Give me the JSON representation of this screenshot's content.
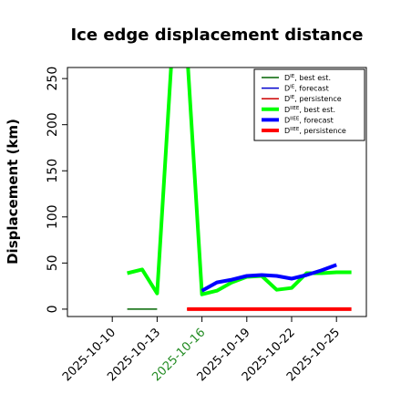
{
  "chart_data": {
    "type": "line",
    "title": "Ice edge displacement distance",
    "ylabel": "Displacement (km)",
    "xlabel": "",
    "x_axis": {
      "type": "date",
      "ticks": [
        "2025-10-10",
        "2025-10-13",
        "2025-10-16",
        "2025-10-19",
        "2025-10-22",
        "2025-10-25"
      ],
      "highlighted_tick": "2025-10-16",
      "highlight_color": "#228B22"
    },
    "xlim": [
      "2025-10-07",
      "2025-10-27"
    ],
    "ylim": [
      -8,
      262
    ],
    "yticks": [
      0,
      50,
      100,
      150,
      200,
      250
    ],
    "grid": false,
    "legend": {
      "position": "top-right",
      "entries": [
        {
          "base": "D",
          "sup": "IE",
          "suffix": ", best est.",
          "color": "#006400",
          "width": 1.5
        },
        {
          "base": "D",
          "sup": "IE",
          "suffix": ", forecast",
          "color": "#0000cd",
          "width": 1.5
        },
        {
          "base": "D",
          "sup": "IE",
          "suffix": ", persistence",
          "color": "#cc0000",
          "width": 1.5
        },
        {
          "base": "D",
          "sup": "IIEE",
          "suffix": ", best est.",
          "color": "#00ff00",
          "width": 4
        },
        {
          "base": "D",
          "sup": "IIEE",
          "suffix": ", forecast",
          "color": "#0000ff",
          "width": 4
        },
        {
          "base": "D",
          "sup": "IIEE",
          "suffix": ", persistence",
          "color": "#ff0000",
          "width": 4
        }
      ]
    },
    "series": [
      {
        "name": "D IE, best est.",
        "color": "#006400",
        "width": 1.5,
        "points": [
          [
            "2025-10-11",
            0
          ],
          [
            "2025-10-12",
            0
          ],
          [
            "2025-10-13",
            0
          ]
        ]
      },
      {
        "name": "D IE, persistence",
        "color": "#cc0000",
        "width": 1.5,
        "points": [
          [
            "2025-10-15",
            0
          ],
          [
            "2025-10-16",
            0
          ],
          [
            "2025-10-17",
            0
          ],
          [
            "2025-10-18",
            0
          ],
          [
            "2025-10-19",
            0
          ],
          [
            "2025-10-20",
            0
          ],
          [
            "2025-10-21",
            0
          ],
          [
            "2025-10-22",
            0
          ],
          [
            "2025-10-23",
            0
          ],
          [
            "2025-10-24",
            0
          ],
          [
            "2025-10-25",
            0
          ]
        ]
      },
      {
        "name": "D IE, forecast",
        "color": "#0000cd",
        "width": 1.5,
        "points": [
          [
            "2025-10-16",
            0
          ],
          [
            "2025-10-17",
            0
          ],
          [
            "2025-10-18",
            0
          ],
          [
            "2025-10-19",
            0
          ],
          [
            "2025-10-20",
            0
          ],
          [
            "2025-10-21",
            0
          ],
          [
            "2025-10-22",
            0
          ],
          [
            "2025-10-23",
            0
          ],
          [
            "2025-10-24",
            0
          ],
          [
            "2025-10-25",
            0
          ]
        ]
      },
      {
        "name": "D IIEE, best est.",
        "color": "#00ff00",
        "width": 4,
        "points": [
          [
            "2025-10-11",
            39
          ],
          [
            "2025-10-12",
            43
          ],
          [
            "2025-10-13",
            17
          ],
          [
            "2025-10-14",
            280
          ],
          [
            "2025-10-15",
            280
          ],
          [
            "2025-10-16",
            16
          ],
          [
            "2025-10-17",
            20
          ],
          [
            "2025-10-18",
            29
          ],
          [
            "2025-10-19",
            35
          ],
          [
            "2025-10-20",
            36
          ],
          [
            "2025-10-21",
            21
          ],
          [
            "2025-10-22",
            23
          ],
          [
            "2025-10-23",
            39
          ],
          [
            "2025-10-24",
            39
          ],
          [
            "2025-10-25",
            40
          ],
          [
            "2025-10-26",
            40
          ]
        ]
      },
      {
        "name": "D IIEE, forecast",
        "color": "#0000ff",
        "width": 4,
        "points": [
          [
            "2025-10-16",
            20
          ],
          [
            "2025-10-17",
            29
          ],
          [
            "2025-10-18",
            32
          ],
          [
            "2025-10-19",
            36
          ],
          [
            "2025-10-20",
            37
          ],
          [
            "2025-10-21",
            36
          ],
          [
            "2025-10-22",
            33
          ],
          [
            "2025-10-23",
            37
          ],
          [
            "2025-10-24",
            42
          ],
          [
            "2025-10-25",
            48
          ]
        ]
      },
      {
        "name": "D IIEE, persistence",
        "color": "#ff0000",
        "width": 4,
        "points": [
          [
            "2025-10-15",
            0
          ],
          [
            "2025-10-16",
            0
          ],
          [
            "2025-10-17",
            0
          ],
          [
            "2025-10-18",
            0
          ],
          [
            "2025-10-19",
            0
          ],
          [
            "2025-10-20",
            0
          ],
          [
            "2025-10-21",
            0
          ],
          [
            "2025-10-22",
            0
          ],
          [
            "2025-10-23",
            0
          ],
          [
            "2025-10-24",
            0
          ],
          [
            "2025-10-25",
            0
          ],
          [
            "2025-10-26",
            0
          ]
        ]
      }
    ]
  }
}
